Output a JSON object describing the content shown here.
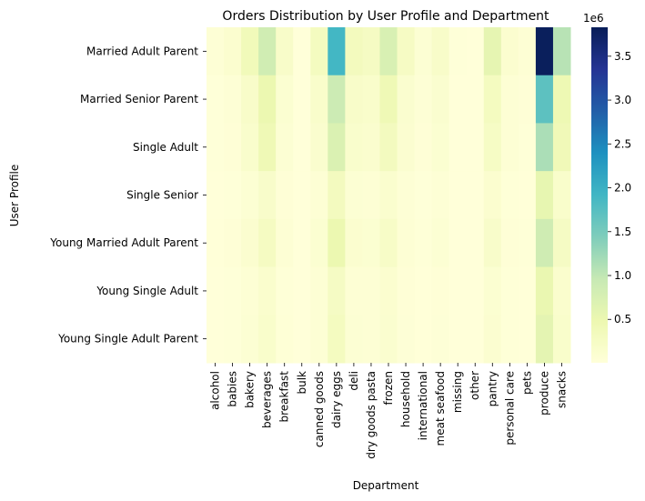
{
  "chart_data": {
    "type": "heatmap",
    "title": "Orders Distribution by User Profile and Department",
    "xlabel": "Department",
    "ylabel": "User Profile",
    "rows": [
      "Married Adult Parent",
      "Married Senior Parent",
      "Single Adult",
      "Single Senior",
      "Young Married Adult Parent",
      "Young Single Adult",
      "Young Single Adult Parent"
    ],
    "columns": [
      "alcohol",
      "babies",
      "bakery",
      "beverages",
      "breakfast",
      "bulk",
      "canned goods",
      "dairy eggs",
      "deli",
      "dry goods pasta",
      "frozen",
      "household",
      "international",
      "meat seafood",
      "missing",
      "other",
      "pantry",
      "personal care",
      "pets",
      "produce",
      "snacks"
    ],
    "values": [
      [
        50000,
        120000,
        370000,
        850000,
        200000,
        10000,
        300000,
        1900000,
        330000,
        270000,
        750000,
        250000,
        80000,
        200000,
        20000,
        10000,
        570000,
        120000,
        70000,
        3800000,
        1060000
      ],
      [
        20000,
        50000,
        200000,
        500000,
        100000,
        5000,
        170000,
        900000,
        200000,
        170000,
        420000,
        130000,
        50000,
        130000,
        10000,
        5000,
        300000,
        70000,
        40000,
        1700000,
        450000
      ],
      [
        20000,
        40000,
        160000,
        420000,
        80000,
        5000,
        140000,
        720000,
        160000,
        140000,
        320000,
        110000,
        40000,
        100000,
        10000,
        5000,
        240000,
        60000,
        30000,
        1150000,
        400000
      ],
      [
        10000,
        20000,
        80000,
        180000,
        40000,
        2000,
        70000,
        320000,
        80000,
        70000,
        140000,
        50000,
        20000,
        50000,
        5000,
        2000,
        120000,
        30000,
        15000,
        560000,
        170000
      ],
      [
        15000,
        40000,
        120000,
        280000,
        60000,
        3000,
        100000,
        500000,
        120000,
        100000,
        220000,
        70000,
        30000,
        80000,
        7000,
        3000,
        180000,
        40000,
        25000,
        860000,
        260000
      ],
      [
        10000,
        20000,
        70000,
        150000,
        30000,
        2000,
        60000,
        260000,
        70000,
        60000,
        120000,
        40000,
        15000,
        40000,
        4000,
        2000,
        100000,
        25000,
        12000,
        520000,
        150000
      ],
      [
        10000,
        20000,
        80000,
        170000,
        35000,
        2000,
        65000,
        300000,
        75000,
        65000,
        130000,
        45000,
        18000,
        45000,
        4000,
        2000,
        110000,
        28000,
        13000,
        600000,
        170000
      ]
    ],
    "colorbar": {
      "colormap": "YlGnBu",
      "range": [
        5000,
        3830000
      ],
      "ticks": [
        0.5,
        1.0,
        1.5,
        2.0,
        2.5,
        3.0,
        3.5
      ],
      "tick_labels": [
        "0.5",
        "1.0",
        "1.5",
        "2.0",
        "2.5",
        "3.0",
        "3.5"
      ],
      "offset_label": "1e6"
    },
    "grid": false
  }
}
